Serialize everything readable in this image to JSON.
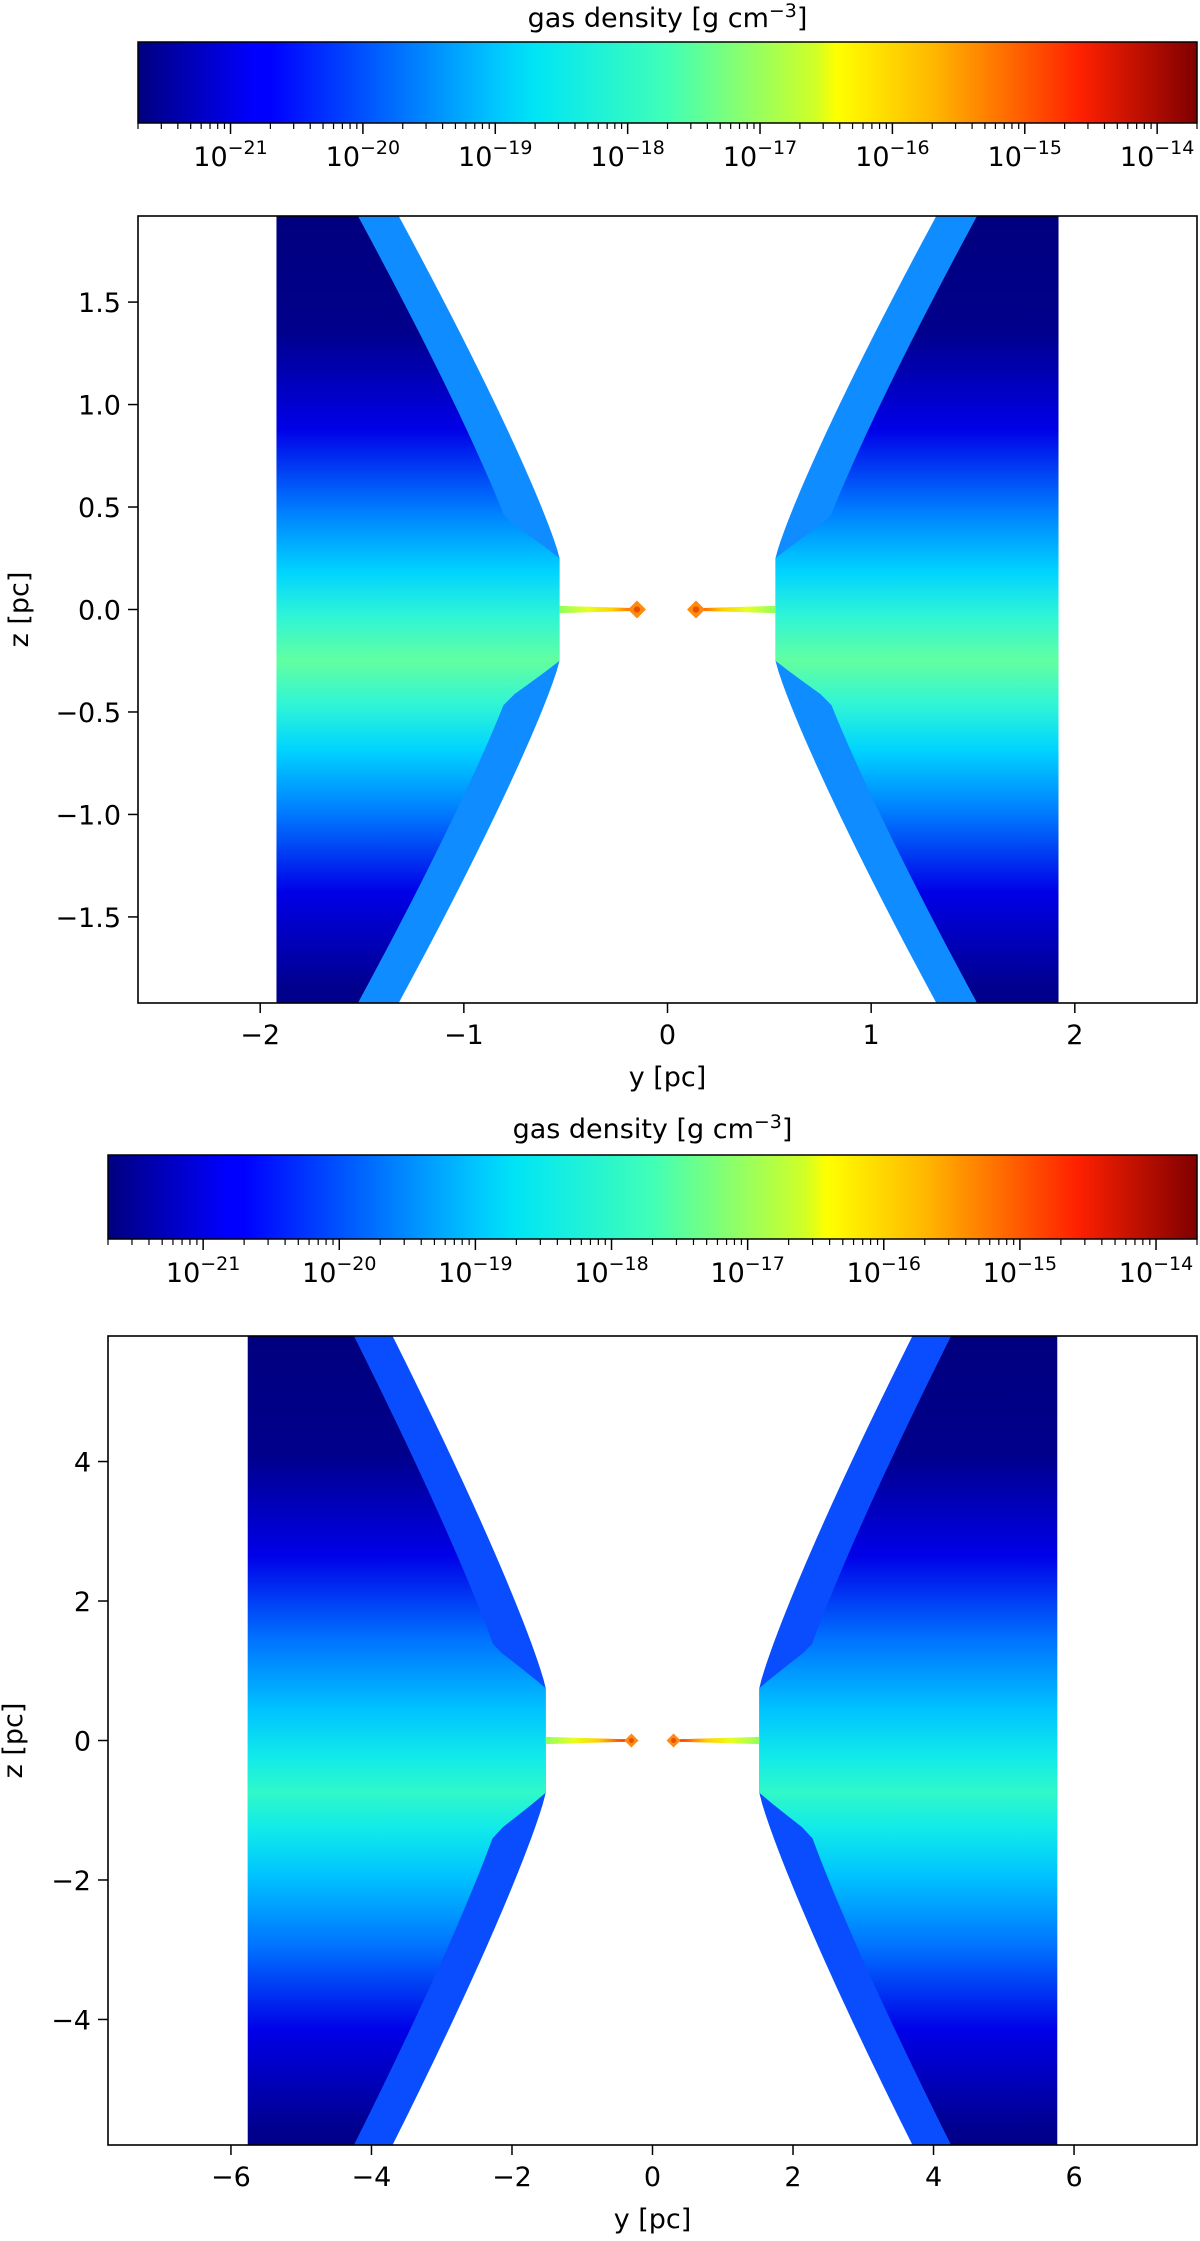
{
  "chart_data": [
    {
      "type": "heatmap",
      "colorbar": {
        "label": "gas density [g cm",
        "label_exp": "−3",
        "scale": "log",
        "colormap": "jet",
        "range": [
          2e-22,
          2e-14
        ],
        "tick_base": "10",
        "ticks": [
          {
            "exp": "−21",
            "value": 1e-21
          },
          {
            "exp": "−20",
            "value": 1e-20
          },
          {
            "exp": "−19",
            "value": 1e-19
          },
          {
            "exp": "−18",
            "value": 1e-18
          },
          {
            "exp": "−17",
            "value": 1e-17
          },
          {
            "exp": "−16",
            "value": 1e-16
          },
          {
            "exp": "−15",
            "value": 1e-15
          },
          {
            "exp": "−14",
            "value": 1e-14
          }
        ]
      },
      "xlabel": "y [pc]",
      "ylabel": "z [pc]",
      "xlim": [
        -2.6,
        2.6
      ],
      "ylim": [
        -1.92,
        1.92
      ],
      "xticks": [
        {
          "v": -2,
          "t": "−2"
        },
        {
          "v": -1,
          "t": "−1"
        },
        {
          "v": 0,
          "t": "0"
        },
        {
          "v": 1,
          "t": "1"
        },
        {
          "v": 2,
          "t": "2"
        }
      ],
      "yticks": [
        {
          "v": 1.5,
          "t": "1.5"
        },
        {
          "v": 1.0,
          "t": "1.0"
        },
        {
          "v": 0.5,
          "t": "0.5"
        },
        {
          "v": 0.0,
          "t": "0.0"
        },
        {
          "v": -0.5,
          "t": "−0.5"
        },
        {
          "v": -1.0,
          "t": "−1.0"
        },
        {
          "v": -1.5,
          "t": "−1.5"
        }
      ],
      "structure": {
        "outer_edge_y": 1.92,
        "inner_edge_y": 0.53,
        "inner_half_height_z": 0.25,
        "shell_outer_y_at_top": 1.32,
        "shell_width_y": 0.2,
        "midplane_stream_end_y": 0.13,
        "sink_particles_y": [
          -0.15,
          0.14
        ]
      }
    },
    {
      "type": "heatmap",
      "colorbar": {
        "label": "gas density [g cm",
        "label_exp": "−3",
        "scale": "log",
        "colormap": "jet",
        "range": [
          2e-22,
          2e-14
        ],
        "tick_base": "10",
        "ticks": [
          {
            "exp": "−21",
            "value": 1e-21
          },
          {
            "exp": "−20",
            "value": 1e-20
          },
          {
            "exp": "−19",
            "value": 1e-19
          },
          {
            "exp": "−18",
            "value": 1e-18
          },
          {
            "exp": "−17",
            "value": 1e-17
          },
          {
            "exp": "−16",
            "value": 1e-16
          },
          {
            "exp": "−15",
            "value": 1e-15
          },
          {
            "exp": "−14",
            "value": 1e-14
          }
        ]
      },
      "xlabel": "y [pc]",
      "ylabel": "z [pc]",
      "xlim": [
        -7.75,
        7.75
      ],
      "ylim": [
        -5.8,
        5.8
      ],
      "xticks": [
        {
          "v": -6,
          "t": "−6"
        },
        {
          "v": -4,
          "t": "−4"
        },
        {
          "v": -2,
          "t": "−2"
        },
        {
          "v": 0,
          "t": "0"
        },
        {
          "v": 2,
          "t": "2"
        },
        {
          "v": 4,
          "t": "4"
        },
        {
          "v": 6,
          "t": "6"
        }
      ],
      "yticks": [
        {
          "v": 4,
          "t": "4"
        },
        {
          "v": 2,
          "t": "2"
        },
        {
          "v": 0,
          "t": "0"
        },
        {
          "v": -2,
          "t": "−2"
        },
        {
          "v": -4,
          "t": "−4"
        }
      ],
      "structure": {
        "outer_edge_y": 5.76,
        "inner_edge_y": 1.52,
        "inner_half_height_z": 0.75,
        "shell_outer_y_at_top": 3.7,
        "shell_width_y": 0.55,
        "midplane_stream_end_y": 0.38,
        "sink_particles_y": [
          -0.3,
          0.3
        ]
      }
    }
  ]
}
